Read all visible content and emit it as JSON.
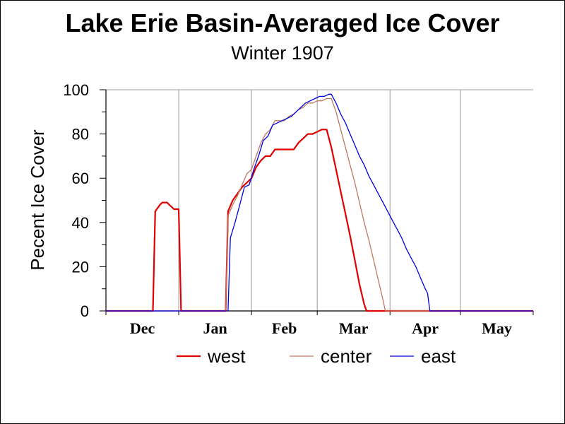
{
  "chart_data": {
    "type": "line",
    "title": "Lake Erie Basin-Averaged Ice Cover",
    "subtitle": "Winter 1907",
    "ylabel": "Pecent Ice Cover",
    "xlabel": "",
    "ylim": [
      0,
      100
    ],
    "yticks": [
      0,
      20,
      40,
      60,
      80,
      100
    ],
    "xlim": [
      0,
      182
    ],
    "x_unit": "day of season",
    "month_ticks": [
      {
        "label": "Dec",
        "start": 0,
        "end": 31
      },
      {
        "label": "Jan",
        "start": 31,
        "end": 62
      },
      {
        "label": "Feb",
        "start": 62,
        "end": 90
      },
      {
        "label": "Mar",
        "start": 90,
        "end": 121
      },
      {
        "label": "Apr",
        "start": 121,
        "end": 151
      },
      {
        "label": "May",
        "start": 151,
        "end": 182
      }
    ],
    "grid": true,
    "legend_position": "bottom",
    "series": [
      {
        "name": "west",
        "color": "#e00000",
        "width": 2.2,
        "points": [
          [
            0,
            0
          ],
          [
            20,
            0
          ],
          [
            21,
            45
          ],
          [
            23,
            48
          ],
          [
            24,
            49
          ],
          [
            26,
            49
          ],
          [
            27,
            48
          ],
          [
            29,
            46
          ],
          [
            31,
            46
          ],
          [
            32,
            0
          ],
          [
            51,
            0
          ],
          [
            52,
            45
          ],
          [
            54,
            50
          ],
          [
            56,
            53
          ],
          [
            58,
            56
          ],
          [
            60,
            58
          ],
          [
            62,
            60
          ],
          [
            64,
            65
          ],
          [
            66,
            68
          ],
          [
            68,
            70
          ],
          [
            70,
            70
          ],
          [
            72,
            73
          ],
          [
            74,
            73
          ],
          [
            76,
            73
          ],
          [
            78,
            73
          ],
          [
            80,
            73
          ],
          [
            82,
            76
          ],
          [
            84,
            78
          ],
          [
            86,
            80
          ],
          [
            88,
            80
          ],
          [
            90,
            81
          ],
          [
            92,
            82
          ],
          [
            94,
            82
          ],
          [
            96,
            74
          ],
          [
            98,
            64
          ],
          [
            100,
            54
          ],
          [
            102,
            44
          ],
          [
            104,
            34
          ],
          [
            106,
            23
          ],
          [
            108,
            12
          ],
          [
            110,
            3
          ],
          [
            111,
            0
          ],
          [
            182,
            0
          ]
        ]
      },
      {
        "name": "center",
        "color": "#c07860",
        "width": 1.3,
        "points": [
          [
            0,
            0
          ],
          [
            51,
            0
          ],
          [
            52,
            43
          ],
          [
            54,
            48
          ],
          [
            56,
            52
          ],
          [
            58,
            57
          ],
          [
            60,
            62
          ],
          [
            62,
            64
          ],
          [
            64,
            70
          ],
          [
            66,
            76
          ],
          [
            68,
            80
          ],
          [
            70,
            82
          ],
          [
            72,
            86
          ],
          [
            74,
            86
          ],
          [
            76,
            86
          ],
          [
            78,
            88
          ],
          [
            80,
            89
          ],
          [
            82,
            91
          ],
          [
            84,
            92
          ],
          [
            86,
            94
          ],
          [
            88,
            94
          ],
          [
            90,
            95
          ],
          [
            92,
            95
          ],
          [
            94,
            96
          ],
          [
            96,
            96
          ],
          [
            98,
            90
          ],
          [
            100,
            82
          ],
          [
            102,
            74
          ],
          [
            104,
            66
          ],
          [
            106,
            58
          ],
          [
            108,
            49
          ],
          [
            110,
            40
          ],
          [
            112,
            32
          ],
          [
            114,
            23
          ],
          [
            116,
            14
          ],
          [
            118,
            5
          ],
          [
            119,
            0
          ],
          [
            182,
            0
          ]
        ]
      },
      {
        "name": "east",
        "color": "#0000e0",
        "width": 1.3,
        "points": [
          [
            0,
            0
          ],
          [
            52,
            0
          ],
          [
            53,
            33
          ],
          [
            55,
            40
          ],
          [
            57,
            48
          ],
          [
            59,
            56
          ],
          [
            61,
            57
          ],
          [
            63,
            64
          ],
          [
            65,
            70
          ],
          [
            67,
            77
          ],
          [
            69,
            79
          ],
          [
            71,
            84
          ],
          [
            73,
            85
          ],
          [
            75,
            86
          ],
          [
            77,
            87
          ],
          [
            79,
            88
          ],
          [
            81,
            90
          ],
          [
            83,
            92
          ],
          [
            85,
            94
          ],
          [
            87,
            95
          ],
          [
            89,
            96
          ],
          [
            91,
            97
          ],
          [
            93,
            97
          ],
          [
            95,
            98
          ],
          [
            96,
            98
          ],
          [
            98,
            94
          ],
          [
            100,
            89
          ],
          [
            102,
            85
          ],
          [
            104,
            80
          ],
          [
            106,
            75
          ],
          [
            108,
            70
          ],
          [
            110,
            66
          ],
          [
            112,
            61
          ],
          [
            114,
            57
          ],
          [
            116,
            53
          ],
          [
            118,
            49
          ],
          [
            120,
            45
          ],
          [
            122,
            41
          ],
          [
            124,
            37
          ],
          [
            126,
            33
          ],
          [
            128,
            28
          ],
          [
            130,
            24
          ],
          [
            132,
            20
          ],
          [
            134,
            15
          ],
          [
            136,
            10
          ],
          [
            137,
            8
          ],
          [
            138,
            0
          ],
          [
            182,
            0
          ]
        ]
      }
    ]
  }
}
